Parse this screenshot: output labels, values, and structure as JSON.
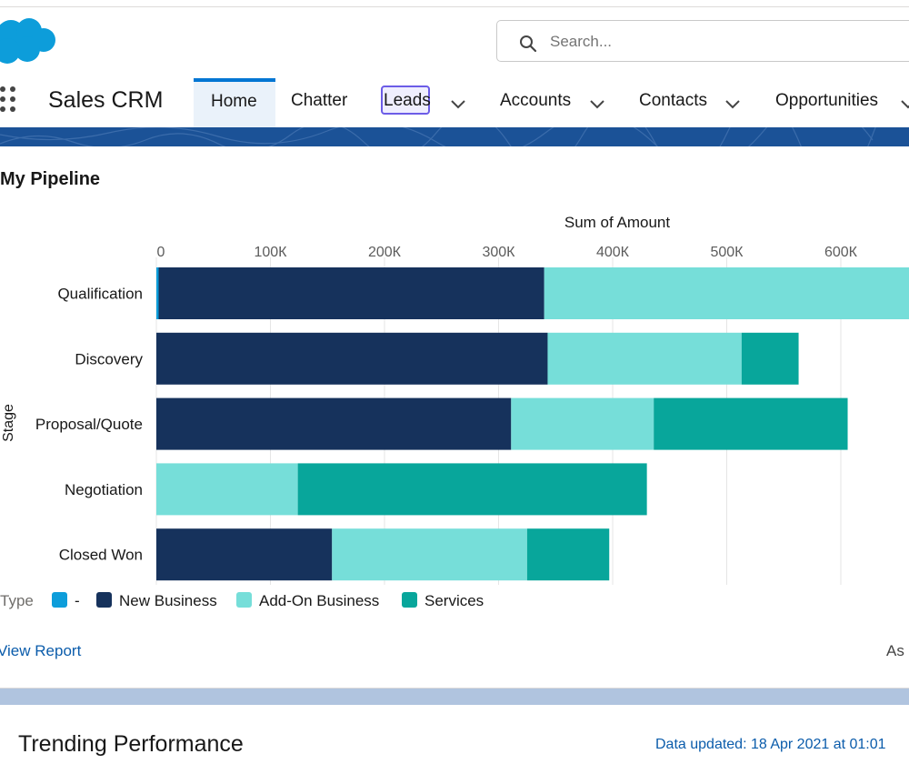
{
  "header": {
    "search_placeholder": "Search..."
  },
  "nav": {
    "app_name": "Sales CRM",
    "tabs": [
      {
        "label": "Home"
      },
      {
        "label": "Chatter"
      },
      {
        "label": "Leads"
      },
      {
        "label": "Accounts"
      },
      {
        "label": "Contacts"
      },
      {
        "label": "Opportunities"
      }
    ]
  },
  "colors": {
    "accent": "#0176d3",
    "band": "#1b5297",
    "unspecified": "#0d9dda",
    "new_business": "#16325c",
    "add_on_business": "#76ded9",
    "services": "#08a69b"
  },
  "card": {
    "title": "My Pipeline",
    "view_report": "View Report",
    "as_of": "As"
  },
  "chart_data": {
    "type": "bar",
    "orientation": "horizontal",
    "stacked": true,
    "title": "Sum of Amount",
    "xlabel": "Sum of Amount",
    "ylabel": "Stage",
    "xlim": [
      0,
      660000
    ],
    "ticks": [
      {
        "value": 0,
        "label": "0"
      },
      {
        "value": 100000,
        "label": "100К"
      },
      {
        "value": 200000,
        "label": "200К"
      },
      {
        "value": 300000,
        "label": "300К"
      },
      {
        "value": 400000,
        "label": "400К"
      },
      {
        "value": 500000,
        "label": "500К"
      },
      {
        "value": 600000,
        "label": "600К"
      }
    ],
    "categories": [
      "Qualification",
      "Discovery",
      "Proposal/Quote",
      "Negotiation",
      "Closed Won"
    ],
    "legend_title": "Type",
    "series": [
      {
        "name": "-",
        "color": "#0d9dda",
        "values": [
          2000,
          0,
          0,
          0,
          0
        ]
      },
      {
        "name": "New Business",
        "color": "#16325c",
        "values": [
          338000,
          343000,
          311000,
          0,
          154000
        ]
      },
      {
        "name": "Add-On Business",
        "color": "#76ded9",
        "values": [
          320000,
          170000,
          125000,
          124000,
          171000
        ]
      },
      {
        "name": "Services",
        "color": "#08a69b",
        "values": [
          0,
          50000,
          170000,
          306000,
          72000
        ]
      }
    ]
  },
  "trending": {
    "title": "Trending Performance",
    "updated": "Data updated: 18 Apr 2021 at 01:01"
  }
}
